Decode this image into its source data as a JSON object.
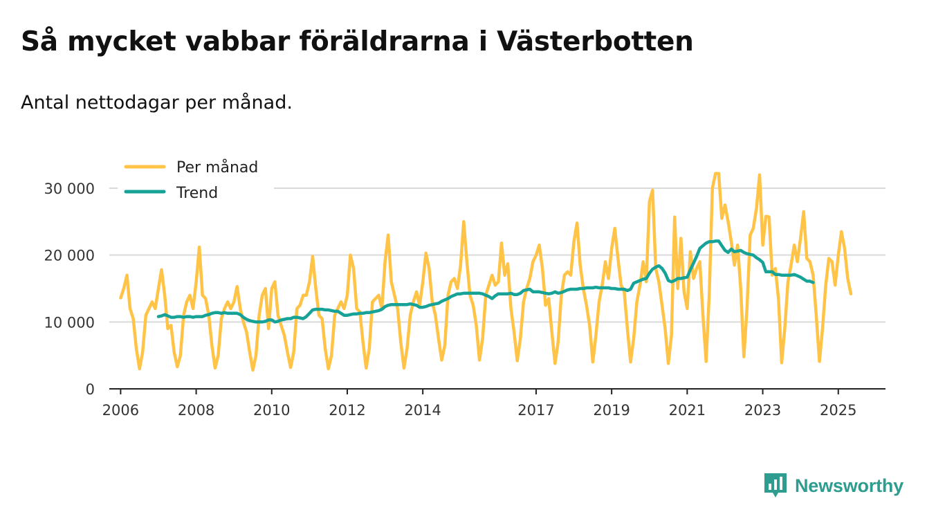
{
  "title": "Så mycket vabbar föräldrarna i Västerbotten",
  "subtitle": "Antal nettodagar per månad.",
  "brand": {
    "name": "Newsworthy",
    "color": "#2e9c8f",
    "icon": "bar-chart-logo-icon"
  },
  "colors": {
    "monthly": "#ffc447",
    "trend": "#16a297",
    "grid": "#d9d9d9",
    "axis": "#222222"
  },
  "chart_data": {
    "type": "line",
    "title": "Så mycket vabbar föräldrarna i Västerbotten",
    "xlabel": "",
    "ylabel": "",
    "xlim": [
      2005.7,
      2026.25
    ],
    "ylim": [
      0,
      30000
    ],
    "yticks": [
      0,
      10000,
      20000,
      30000
    ],
    "ytick_labels": [
      "0",
      "10 000",
      "20 000",
      "30 000"
    ],
    "xticks": [
      2006,
      2008,
      2010,
      2012,
      2014,
      2017,
      2019,
      2021,
      2023,
      2025
    ],
    "xtick_labels": [
      "2006",
      "2008",
      "2010",
      "2012",
      "2014",
      "2017",
      "2019",
      "2021",
      "2023",
      "2025"
    ],
    "grid": true,
    "legend_position": "top-left",
    "series": [
      {
        "name": "Per månad",
        "start_year": 2006,
        "start_month": 1,
        "values": [
          13600,
          15000,
          17000,
          12000,
          10500,
          6000,
          3000,
          5500,
          11000,
          12000,
          13000,
          12000,
          15000,
          17800,
          14000,
          9000,
          9500,
          5500,
          3300,
          5000,
          11000,
          13000,
          14000,
          12000,
          16000,
          21200,
          14000,
          13500,
          11000,
          6500,
          3100,
          5000,
          10500,
          12000,
          13000,
          12000,
          13000,
          15300,
          12000,
          10000,
          8500,
          5500,
          2800,
          5000,
          11000,
          14000,
          15000,
          9000,
          15000,
          16000,
          11000,
          9500,
          8000,
          5500,
          3200,
          5500,
          12000,
          12500,
          14000,
          14000,
          16000,
          19800,
          15000,
          11000,
          10500,
          6000,
          3000,
          5000,
          11000,
          12000,
          13000,
          12000,
          14000,
          20000,
          18000,
          12000,
          11500,
          7000,
          3100,
          6000,
          13000,
          13500,
          14000,
          12000,
          19000,
          23000,
          16000,
          14000,
          12000,
          7000,
          3100,
          6000,
          11000,
          13000,
          14500,
          12500,
          16000,
          20300,
          18000,
          13000,
          11000,
          7500,
          4300,
          6500,
          14000,
          16000,
          16500,
          15000,
          18500,
          25000,
          19000,
          14000,
          12500,
          9500,
          4300,
          7500,
          14000,
          15500,
          17000,
          15500,
          16000,
          21800,
          17000,
          18700,
          12000,
          8500,
          4200,
          7500,
          13000,
          15000,
          16500,
          19000,
          20000,
          21500,
          18000,
          12500,
          13500,
          8500,
          3800,
          7000,
          14000,
          17000,
          17500,
          17000,
          22000,
          24800,
          18500,
          15000,
          12500,
          9500,
          4000,
          8000,
          13000,
          15500,
          19000,
          16500,
          21000,
          24000,
          19500,
          15500,
          14500,
          9000,
          4000,
          7500,
          13000,
          15500,
          19000,
          16000,
          28000,
          29700,
          18000,
          16000,
          12500,
          9000,
          3800,
          8000,
          25700,
          15000,
          22500,
          14500,
          12000,
          20500,
          16500,
          18000,
          19000,
          11000,
          4100,
          14000,
          30000,
          32200,
          32200,
          25500,
          27500,
          25000,
          22000,
          18500,
          21500,
          15000,
          4800,
          12000,
          23000,
          24000,
          27000,
          32000,
          21500,
          25800,
          25700,
          17000,
          18000,
          13500,
          3900,
          9000,
          16000,
          18500,
          21500,
          19000,
          22500,
          26500,
          19500,
          19000,
          17000,
          11000,
          4100,
          9000,
          15500,
          19500,
          19000,
          15500,
          20000,
          23500,
          21000,
          16500,
          14200
        ]
      },
      {
        "name": "Trend",
        "start_year": 2007,
        "start_month": 1,
        "values": [
          10800,
          10900,
          11100,
          10900,
          10700,
          10700,
          10800,
          10800,
          10700,
          10800,
          10800,
          10700,
          10800,
          10800,
          10800,
          11000,
          11100,
          11300,
          11400,
          11400,
          11300,
          11400,
          11300,
          11300,
          11300,
          11300,
          11100,
          10700,
          10400,
          10200,
          10100,
          10000,
          10000,
          10000,
          10100,
          10300,
          10300,
          10000,
          10100,
          10300,
          10400,
          10500,
          10500,
          10700,
          10700,
          10600,
          10500,
          10800,
          11300,
          11800,
          11900,
          11900,
          11900,
          11800,
          11800,
          11700,
          11600,
          11600,
          11300,
          11000,
          11000,
          11100,
          11200,
          11200,
          11300,
          11300,
          11400,
          11400,
          11500,
          11600,
          11700,
          11900,
          12300,
          12500,
          12600,
          12600,
          12600,
          12600,
          12600,
          12600,
          12700,
          12600,
          12500,
          12200,
          12200,
          12300,
          12500,
          12600,
          12700,
          12800,
          13100,
          13300,
          13500,
          13800,
          14000,
          14200,
          14200,
          14300,
          14300,
          14300,
          14300,
          14300,
          14300,
          14200,
          14000,
          13800,
          13500,
          13900,
          14200,
          14200,
          14200,
          14200,
          14300,
          14100,
          14100,
          14300,
          14700,
          14800,
          14900,
          14500,
          14500,
          14500,
          14400,
          14300,
          14200,
          14300,
          14500,
          14300,
          14400,
          14600,
          14800,
          14900,
          14900,
          14900,
          15000,
          15000,
          15100,
          15100,
          15100,
          15200,
          15100,
          15100,
          15100,
          15100,
          15000,
          15000,
          14900,
          14900,
          14900,
          14700,
          14900,
          15800,
          16000,
          16200,
          16400,
          16500,
          17300,
          17900,
          18200,
          18400,
          18000,
          17300,
          16200,
          16000,
          16200,
          16500,
          16500,
          16600,
          16700,
          17800,
          18800,
          19800,
          21000,
          21400,
          21800,
          22000,
          22000,
          22100,
          22100,
          21400,
          20700,
          20400,
          20900,
          20500,
          20600,
          20700,
          20400,
          20200,
          20100,
          20000,
          19600,
          19300,
          18900,
          17500,
          17500,
          17500,
          17100,
          17100,
          17000,
          17000,
          17000,
          17000,
          17100,
          16900,
          16700,
          16400,
          16100,
          16100,
          15900
        ]
      }
    ]
  }
}
